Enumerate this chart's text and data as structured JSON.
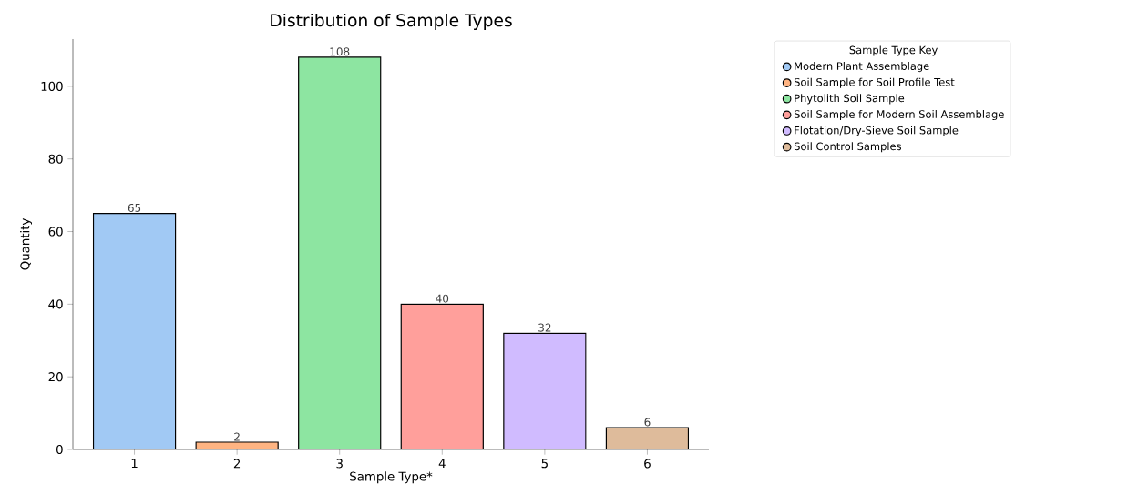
{
  "chart_data": {
    "type": "bar",
    "title": "Distribution of Sample Types",
    "xlabel": "Sample Type*",
    "ylabel": "Quantity",
    "legend_title": "Sample Type Key",
    "categories": [
      "1",
      "2",
      "3",
      "4",
      "5",
      "6"
    ],
    "series": [
      {
        "name": "Modern Plant Assemblage",
        "color": "#a1c9f4",
        "values": [
          65,
          null,
          null,
          null,
          null,
          null
        ]
      },
      {
        "name": "Soil Sample for Soil Profile Test",
        "color": "#ffb482",
        "values": [
          null,
          2,
          null,
          null,
          null,
          null
        ]
      },
      {
        "name": "Phytolith Soil Sample",
        "color": "#8de5a1",
        "values": [
          null,
          null,
          108,
          null,
          null,
          null
        ]
      },
      {
        "name": "Soil Sample for Modern Soil Assemblage",
        "color": "#ff9f9b",
        "values": [
          null,
          null,
          null,
          40,
          null,
          null
        ]
      },
      {
        "name": "Flotation/Dry-Sieve Soil Sample",
        "color": "#d0bbff",
        "values": [
          null,
          null,
          null,
          null,
          32,
          null
        ]
      },
      {
        "name": "Soil Control Samples",
        "color": "#debb9b",
        "values": [
          null,
          null,
          null,
          null,
          null,
          6
        ]
      }
    ],
    "ylim": [
      0,
      113
    ],
    "yticks": [
      0,
      20,
      40,
      60,
      80,
      100
    ],
    "data_labels": true,
    "legend": "right",
    "marker": "circle",
    "grid": false
  }
}
